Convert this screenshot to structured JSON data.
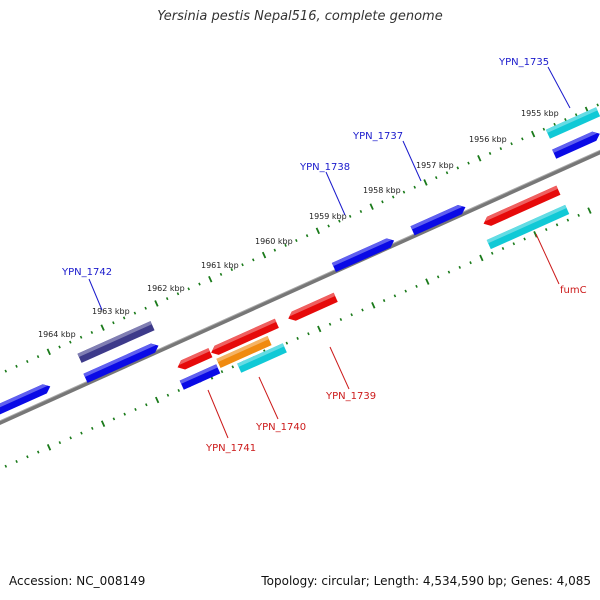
{
  "title": "Yersinia pestis Nepal516, complete genome",
  "footer": {
    "accession": "Accession: NC_008149",
    "summary": "Topology: circular; Length: 4,534,590 bp; Genes: 4,085"
  },
  "colors": {
    "backbone": "#777777",
    "ticks": "#1a7a1a",
    "label_forward": "#1a1acc",
    "label_reverse": "#cc1a1a",
    "gene_blue": "#0a0ae6",
    "gene_red": "#e60a0a",
    "gene_cyan": "#10c9d6",
    "gene_navy": "#3d3a8a",
    "gene_orange": "#f08a10"
  },
  "kbp_labels": [
    "1955 kbp",
    "1956 kbp",
    "1957 kbp",
    "1958 kbp",
    "1959 kbp",
    "1960 kbp",
    "1961 kbp",
    "1962 kbp",
    "1963 kbp",
    "1964 kbp"
  ],
  "gene_labels": {
    "YPN_1735": "YPN_1735",
    "YPN_1737": "YPN_1737",
    "YPN_1738": "YPN_1738",
    "YPN_1742": "YPN_1742",
    "fumC": "fumC",
    "YPN_1739": "YPN_1739",
    "YPN_1740": "YPN_1740",
    "YPN_1741": "YPN_1741"
  }
}
